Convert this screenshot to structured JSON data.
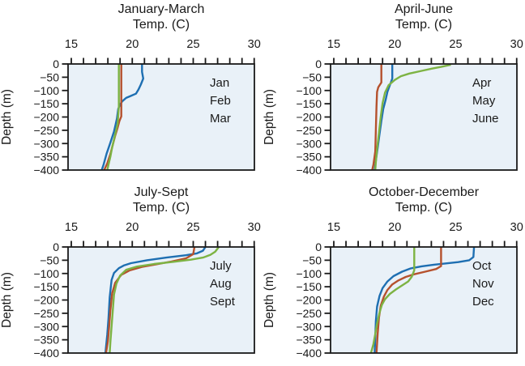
{
  "figure": {
    "background": "#ffffff",
    "plot_background": "#e9f1f8",
    "axis_color": "#1a1a1a",
    "series_colors": {
      "blue": "#1e6fb2",
      "red": "#b5512d",
      "green": "#7db343"
    }
  },
  "axes": {
    "x": {
      "label": "Temp. (C)",
      "min": 15,
      "max": 30,
      "minor_step": 1,
      "major_ticks": [
        15,
        20,
        25,
        30
      ]
    },
    "y": {
      "label": "Depth (m)",
      "min": -400,
      "max": 0,
      "ticks": [
        0,
        -50,
        -100,
        -150,
        -200,
        -250,
        -300,
        -350,
        -400
      ]
    }
  },
  "chart_data": [
    {
      "type": "line",
      "title": "January-March",
      "xlabel": "Temp. (C)",
      "ylabel": "Depth (m)",
      "xlim": [
        15,
        30
      ],
      "ylim": [
        -400,
        0
      ],
      "grid": false,
      "legend_position": "inside-top-right",
      "series": [
        {
          "name": "Jan",
          "color": "#1e6fb2",
          "points": [
            [
              20.8,
              0
            ],
            [
              20.8,
              -30
            ],
            [
              20.9,
              -55
            ],
            [
              20.7,
              -78
            ],
            [
              20.5,
              -97
            ],
            [
              20.3,
              -112
            ],
            [
              19.8,
              -122
            ],
            [
              19.5,
              -128
            ],
            [
              19.2,
              -140
            ],
            [
              19.0,
              -152
            ],
            [
              18.85,
              -170
            ],
            [
              18.75,
              -205
            ],
            [
              18.5,
              -255
            ],
            [
              18.2,
              -297
            ],
            [
              17.9,
              -338
            ],
            [
              17.65,
              -379
            ],
            [
              17.5,
              -400
            ]
          ]
        },
        {
          "name": "Feb",
          "color": "#b5512d",
          "points": [
            [
              19.1,
              0
            ],
            [
              19.1,
              -198
            ],
            [
              18.95,
              -215
            ],
            [
              18.8,
              -240
            ],
            [
              18.6,
              -270
            ],
            [
              18.4,
              -305
            ],
            [
              18.2,
              -340
            ],
            [
              17.95,
              -375
            ],
            [
              17.7,
              -400
            ]
          ]
        },
        {
          "name": "Mar",
          "color": "#7db343",
          "points": [
            [
              18.9,
              0
            ],
            [
              18.9,
              -160
            ],
            [
              18.85,
              -195
            ],
            [
              18.8,
              -225
            ],
            [
              18.65,
              -255
            ],
            [
              18.5,
              -285
            ],
            [
              18.35,
              -315
            ],
            [
              18.2,
              -350
            ],
            [
              18.05,
              -380
            ],
            [
              17.95,
              -400
            ]
          ]
        }
      ]
    },
    {
      "type": "line",
      "title": "April-June",
      "xlabel": "Temp. (C)",
      "ylabel": "Depth (m)",
      "xlim": [
        15,
        30
      ],
      "ylim": [
        -400,
        0
      ],
      "grid": false,
      "legend_position": "inside-top-right",
      "series": [
        {
          "name": "Apr",
          "color": "#1e6fb2",
          "points": [
            [
              19.8,
              0
            ],
            [
              19.8,
              -55
            ],
            [
              19.6,
              -80
            ],
            [
              19.4,
              -105
            ],
            [
              19.25,
              -135
            ],
            [
              19.05,
              -170
            ],
            [
              18.9,
              -215
            ],
            [
              18.75,
              -265
            ],
            [
              18.6,
              -315
            ],
            [
              18.45,
              -365
            ],
            [
              18.35,
              -400
            ]
          ]
        },
        {
          "name": "May",
          "color": "#b5512d",
          "points": [
            [
              18.9,
              0
            ],
            [
              18.9,
              -70
            ],
            [
              18.65,
              -88
            ],
            [
              18.55,
              -105
            ],
            [
              18.5,
              -160
            ],
            [
              18.45,
              -250
            ],
            [
              18.4,
              -330
            ],
            [
              18.25,
              -380
            ],
            [
              18.15,
              -400
            ]
          ]
        },
        {
          "name": "June",
          "color": "#7db343",
          "points": [
            [
              24.6,
              -3
            ],
            [
              23.8,
              -11
            ],
            [
              23.1,
              -17
            ],
            [
              22.2,
              -26
            ],
            [
              21.2,
              -36
            ],
            [
              20.5,
              -46
            ],
            [
              20.0,
              -60
            ],
            [
              19.5,
              -80
            ],
            [
              19.2,
              -108
            ],
            [
              19.0,
              -148
            ],
            [
              18.85,
              -200
            ],
            [
              18.7,
              -260
            ],
            [
              18.55,
              -320
            ],
            [
              18.45,
              -370
            ],
            [
              18.4,
              -400
            ]
          ]
        }
      ]
    },
    {
      "type": "line",
      "title": "July-Sept",
      "xlabel": "Temp. (C)",
      "ylabel": "Depth (m)",
      "xlim": [
        15,
        30
      ],
      "ylim": [
        -400,
        0
      ],
      "grid": false,
      "legend_position": "inside-top-right",
      "series": [
        {
          "name": "July",
          "color": "#1e6fb2",
          "points": [
            [
              26.0,
              0
            ],
            [
              25.8,
              -14
            ],
            [
              25.3,
              -24
            ],
            [
              24.4,
              -31
            ],
            [
              22.8,
              -40
            ],
            [
              21.2,
              -50
            ],
            [
              19.9,
              -61
            ],
            [
              19.3,
              -70
            ],
            [
              18.9,
              -80
            ],
            [
              18.5,
              -98
            ],
            [
              18.3,
              -125
            ],
            [
              18.15,
              -190
            ],
            [
              18.05,
              -270
            ],
            [
              17.95,
              -330
            ],
            [
              17.8,
              -400
            ]
          ]
        },
        {
          "name": "Aug",
          "color": "#b5512d",
          "points": [
            [
              25.1,
              0
            ],
            [
              25.0,
              -27
            ],
            [
              24.4,
              -43
            ],
            [
              23.2,
              -55
            ],
            [
              22.0,
              -65
            ],
            [
              20.8,
              -75
            ],
            [
              19.8,
              -88
            ],
            [
              19.1,
              -105
            ],
            [
              18.6,
              -135
            ],
            [
              18.35,
              -175
            ],
            [
              18.2,
              -240
            ],
            [
              18.1,
              -300
            ],
            [
              18.0,
              -355
            ],
            [
              17.85,
              -400
            ]
          ]
        },
        {
          "name": "Sept",
          "color": "#7db343",
          "points": [
            [
              27.1,
              0
            ],
            [
              26.8,
              -18
            ],
            [
              26.4,
              -30
            ],
            [
              25.8,
              -40
            ],
            [
              24.8,
              -48
            ],
            [
              23.4,
              -56
            ],
            [
              21.8,
              -64
            ],
            [
              20.4,
              -74
            ],
            [
              19.5,
              -86
            ],
            [
              19.0,
              -108
            ],
            [
              18.7,
              -138
            ],
            [
              18.5,
              -180
            ],
            [
              18.4,
              -240
            ],
            [
              18.3,
              -300
            ],
            [
              18.2,
              -360
            ],
            [
              18.15,
              -400
            ]
          ]
        }
      ]
    },
    {
      "type": "line",
      "title": "October-December",
      "xlabel": "Temp. (C)",
      "ylabel": "Depth (m)",
      "xlim": [
        15,
        30
      ],
      "ylim": [
        -400,
        0
      ],
      "grid": false,
      "legend_position": "inside-top-right",
      "series": [
        {
          "name": "Oct",
          "color": "#1e6fb2",
          "points": [
            [
              26.5,
              0
            ],
            [
              26.45,
              -38
            ],
            [
              26.1,
              -50
            ],
            [
              25.2,
              -57
            ],
            [
              24.2,
              -62
            ],
            [
              23.2,
              -67
            ],
            [
              22.2,
              -73
            ],
            [
              21.3,
              -81
            ],
            [
              20.6,
              -93
            ],
            [
              19.9,
              -110
            ],
            [
              19.4,
              -130
            ],
            [
              19.0,
              -155
            ],
            [
              18.75,
              -185
            ],
            [
              18.55,
              -225
            ],
            [
              18.45,
              -280
            ],
            [
              18.4,
              -340
            ],
            [
              18.35,
              -400
            ]
          ]
        },
        {
          "name": "Nov",
          "color": "#b5512d",
          "points": [
            [
              23.8,
              0
            ],
            [
              23.8,
              -72
            ],
            [
              23.4,
              -83
            ],
            [
              22.5,
              -93
            ],
            [
              21.6,
              -103
            ],
            [
              20.9,
              -113
            ],
            [
              20.3,
              -126
            ],
            [
              19.8,
              -141
            ],
            [
              19.4,
              -162
            ],
            [
              19.1,
              -188
            ],
            [
              18.85,
              -222
            ],
            [
              18.7,
              -268
            ],
            [
              18.6,
              -325
            ],
            [
              18.5,
              -400
            ]
          ]
        },
        {
          "name": "Dec",
          "color": "#7db343",
          "points": [
            [
              21.6,
              0
            ],
            [
              21.6,
              -88
            ],
            [
              21.4,
              -112
            ],
            [
              21.1,
              -130
            ],
            [
              20.6,
              -145
            ],
            [
              20.1,
              -160
            ],
            [
              19.6,
              -177
            ],
            [
              19.2,
              -197
            ],
            [
              18.95,
              -218
            ],
            [
              18.75,
              -248
            ],
            [
              18.55,
              -288
            ],
            [
              18.4,
              -328
            ],
            [
              18.25,
              -366
            ],
            [
              18.05,
              -400
            ]
          ]
        }
      ]
    }
  ]
}
